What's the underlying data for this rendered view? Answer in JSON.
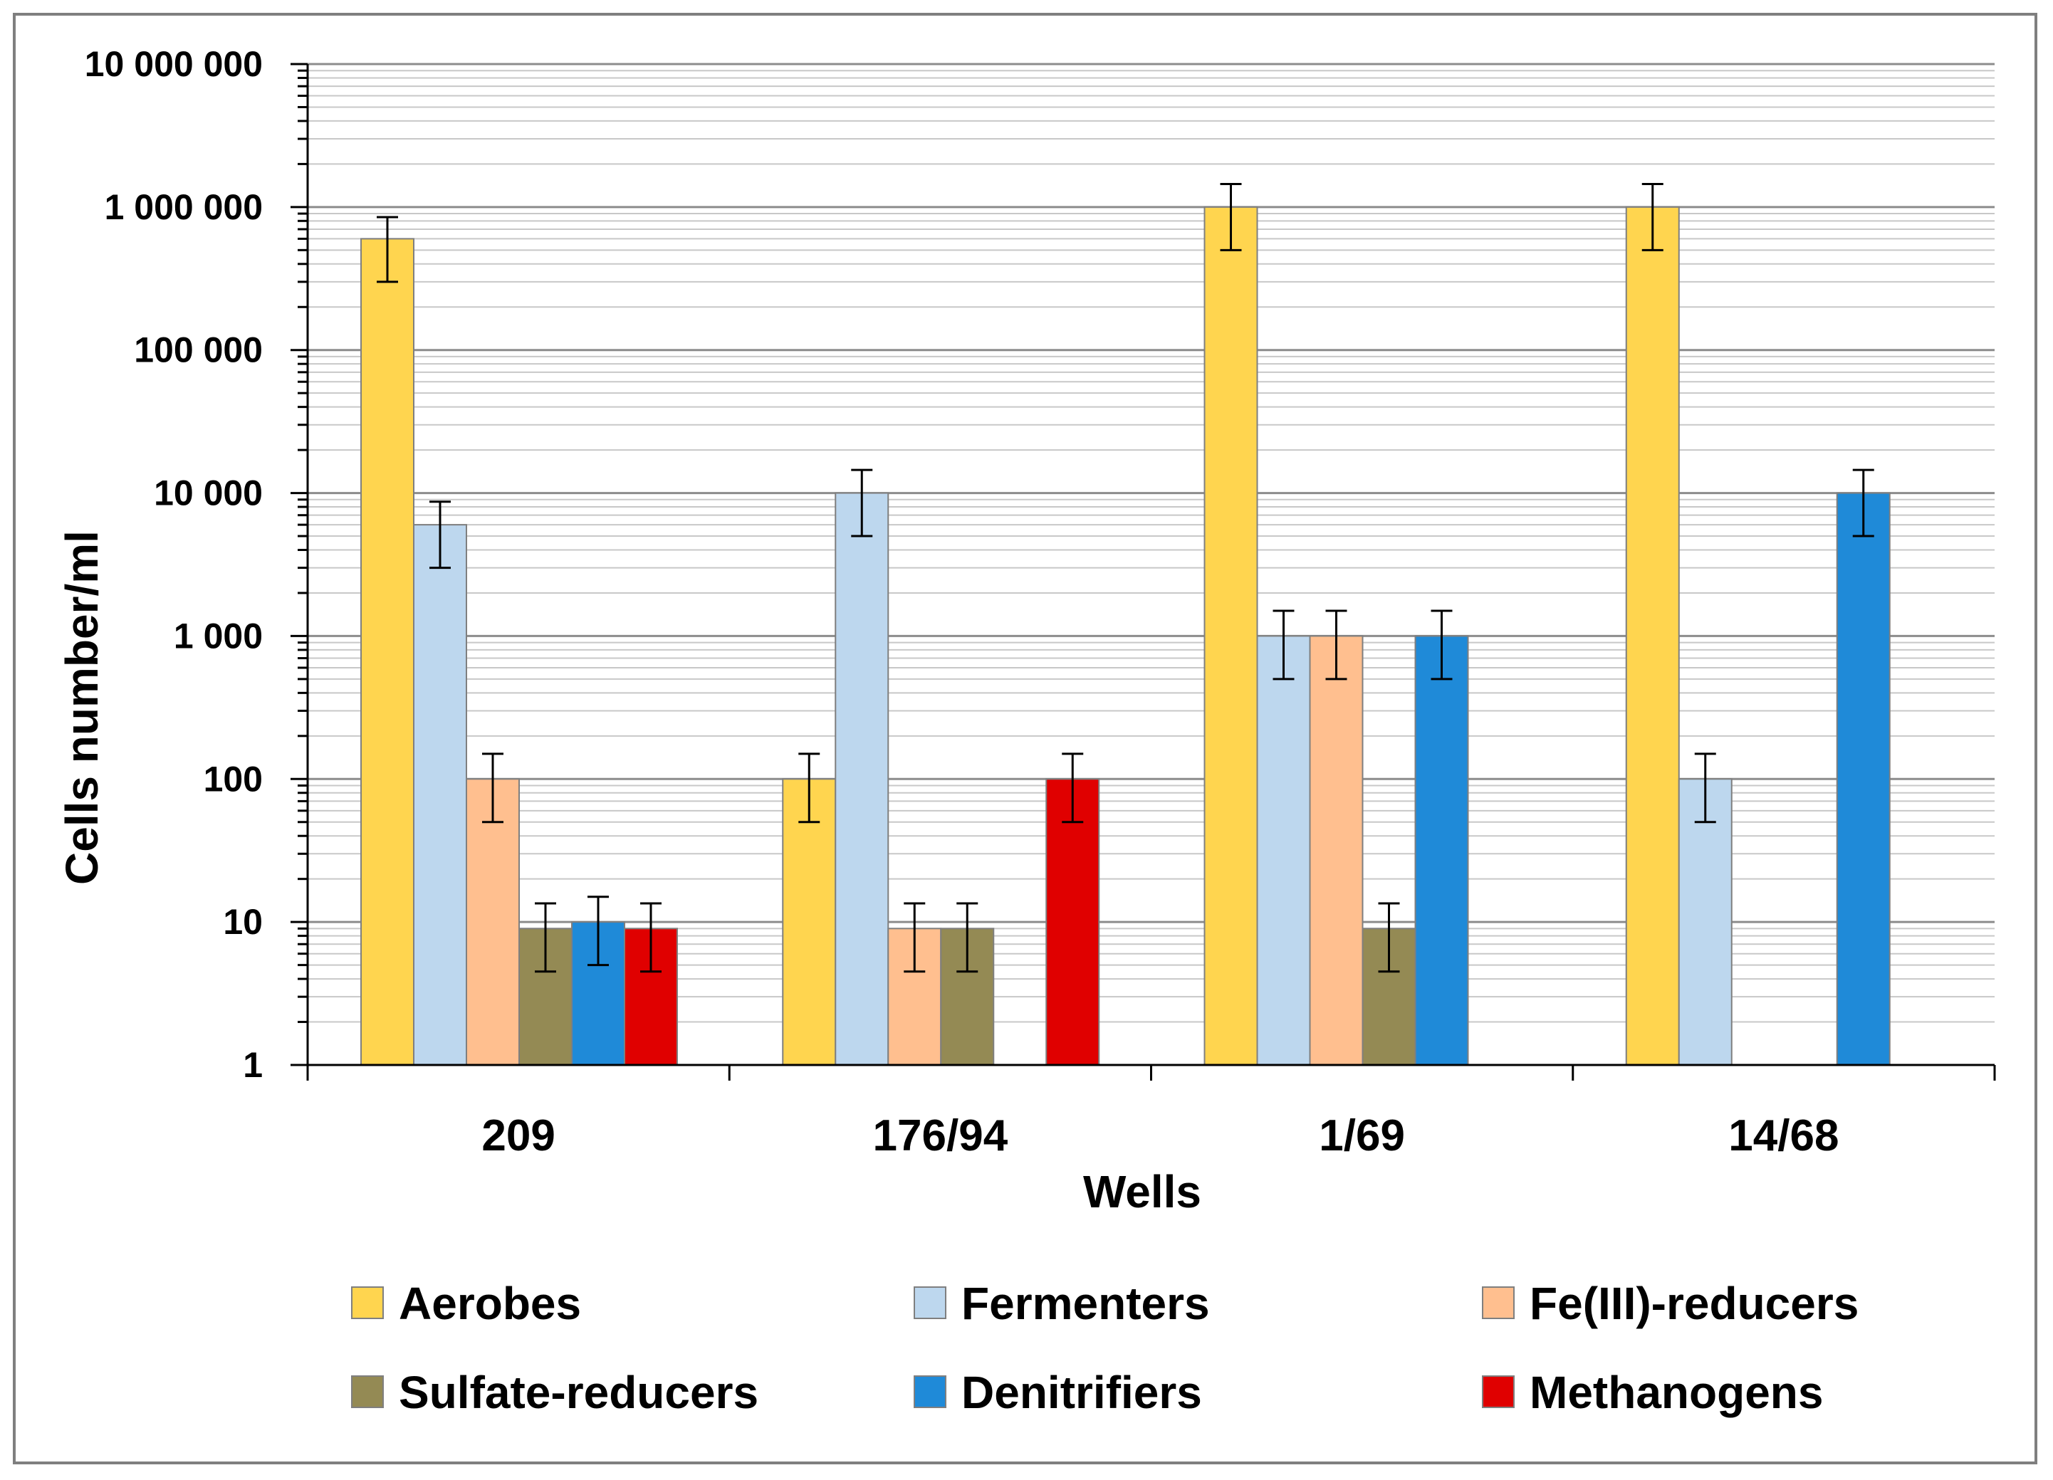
{
  "chart_data": {
    "type": "bar",
    "scale": "log",
    "ylim": [
      1,
      10000000
    ],
    "xlabel": "Wells",
    "ylabel": "Cells number/ml",
    "ytick_values": [
      1,
      10,
      100,
      1000,
      10000,
      100000,
      1000000,
      10000000
    ],
    "ytick_labels": [
      "1",
      "10",
      "100",
      "1 000",
      "10 000",
      "100 000",
      "1 000 000",
      "10 000 000"
    ],
    "categories": [
      "209",
      "176/94",
      "1/69",
      "14/68"
    ],
    "legend_position": "bottom",
    "series": [
      {
        "name": "Aerobes",
        "color": "#ffd54f",
        "values": [
          600000,
          100,
          1000000,
          1000000
        ],
        "error_low": [
          300000,
          50,
          500000,
          500000
        ],
        "error_high": [
          850000,
          150,
          1450000,
          1450000
        ]
      },
      {
        "name": "Fermenters",
        "color": "#bdd7ee",
        "values": [
          6000,
          10000,
          1000,
          100
        ],
        "error_low": [
          3000,
          5000,
          500,
          50
        ],
        "error_high": [
          8700,
          14500,
          1500,
          150
        ]
      },
      {
        "name": "Fe(III)-reducers",
        "color": "#ffbf8f",
        "values": [
          100,
          9,
          1000,
          null
        ],
        "error_low": [
          50,
          4.5,
          500,
          null
        ],
        "error_high": [
          150,
          13.5,
          1500,
          null
        ]
      },
      {
        "name": "Sulfate-reducers",
        "color": "#948a54",
        "values": [
          9,
          9,
          9,
          null
        ],
        "error_low": [
          4.5,
          4.5,
          4.5,
          null
        ],
        "error_high": [
          13.5,
          13.5,
          13.5,
          null
        ]
      },
      {
        "name": "Denitrifiers",
        "color": "#1f8ad8",
        "values": [
          10,
          null,
          1000,
          10000
        ],
        "error_low": [
          5,
          null,
          500,
          5000
        ],
        "error_high": [
          15,
          null,
          1500,
          14500
        ]
      },
      {
        "name": "Methanogens",
        "color": "#e00000",
        "values": [
          9,
          100,
          null,
          null
        ],
        "error_low": [
          4.5,
          50,
          null,
          null
        ],
        "error_high": [
          13.5,
          150,
          null,
          null
        ]
      }
    ]
  }
}
